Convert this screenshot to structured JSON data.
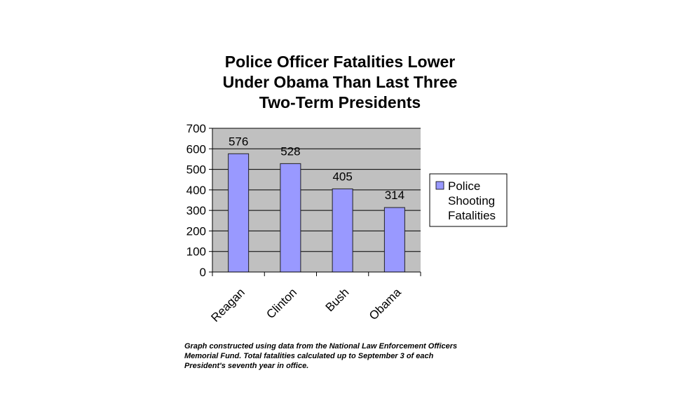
{
  "chart_data": {
    "type": "bar",
    "title": [
      "Police Officer Fatalities Lower",
      "Under Obama Than Last Three",
      "Two-Term Presidents"
    ],
    "categories": [
      "Reagan",
      "Clinton",
      "Bush",
      "Obama"
    ],
    "series": [
      {
        "name": "Police Shooting Fatalities",
        "legend_lines": [
          "Police",
          "Shooting",
          "Fatalities"
        ],
        "values": [
          576,
          528,
          405,
          314
        ],
        "color": "#9999ff"
      }
    ],
    "data_labels": [
      "576",
      "528",
      "405",
      "314"
    ],
    "yticks": [
      "0",
      "100",
      "200",
      "300",
      "400",
      "500",
      "600",
      "700"
    ],
    "ylim": [
      0,
      700
    ],
    "xlabel": "",
    "ylabel": "",
    "grid": true,
    "legend_position": "right",
    "plot_background": "#c0c0c0",
    "footnote": [
      "Graph constructed using data from the National Law Enforcement Officers",
      "Memorial Fund.  Total fatalities calculated up to September 3 of each",
      "President's seventh year in office."
    ]
  }
}
